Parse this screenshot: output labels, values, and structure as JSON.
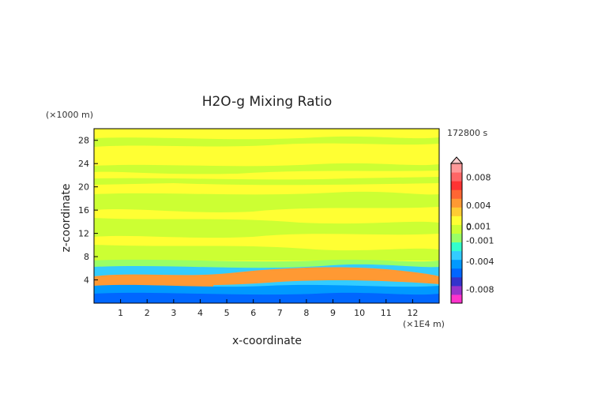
{
  "chart_data": {
    "type": "heatmap",
    "title": "H2O-g Mixing Ratio",
    "xlabel": "x-coordinate",
    "ylabel": "z-coordinate",
    "x_unit": "(×1E4 m)",
    "y_unit": "(×1000 m)",
    "time_label": "172800 s",
    "xlim": [
      0,
      13
    ],
    "ylim": [
      0,
      30
    ],
    "x_ticks": [
      "1",
      "2",
      "3",
      "4",
      "5",
      "6",
      "7",
      "8",
      "9",
      "10",
      "11",
      "12"
    ],
    "y_ticks": [
      "4",
      "8",
      "12",
      "16",
      "20",
      "24",
      "28"
    ],
    "colorbar": {
      "range": [
        -0.01,
        0.01
      ],
      "labels": [
        "0.008",
        "0.004",
        "0.001",
        "0",
        "-0.001",
        "-0.004",
        "-0.008"
      ],
      "colors_low_to_high": [
        "#ff33cc",
        "#9933cc",
        "#3333cc",
        "#0066ff",
        "#0099ff",
        "#33ccff",
        "#33ffcc",
        "#99ff66",
        "#ccff33",
        "#ffff33",
        "#ffcc33",
        "#ff9933",
        "#ff6633",
        "#ff3333",
        "#ff6666",
        "#ff9999"
      ]
    },
    "field_description_bands": [
      {
        "z_range": [
          0,
          1.5
        ],
        "dominant": "blue"
      },
      {
        "z_range": [
          1.5,
          6
        ],
        "dominant": "mixed orange/cyan/blue"
      },
      {
        "z_range": [
          6,
          30
        ],
        "dominant": "yellow with green bands"
      }
    ]
  }
}
